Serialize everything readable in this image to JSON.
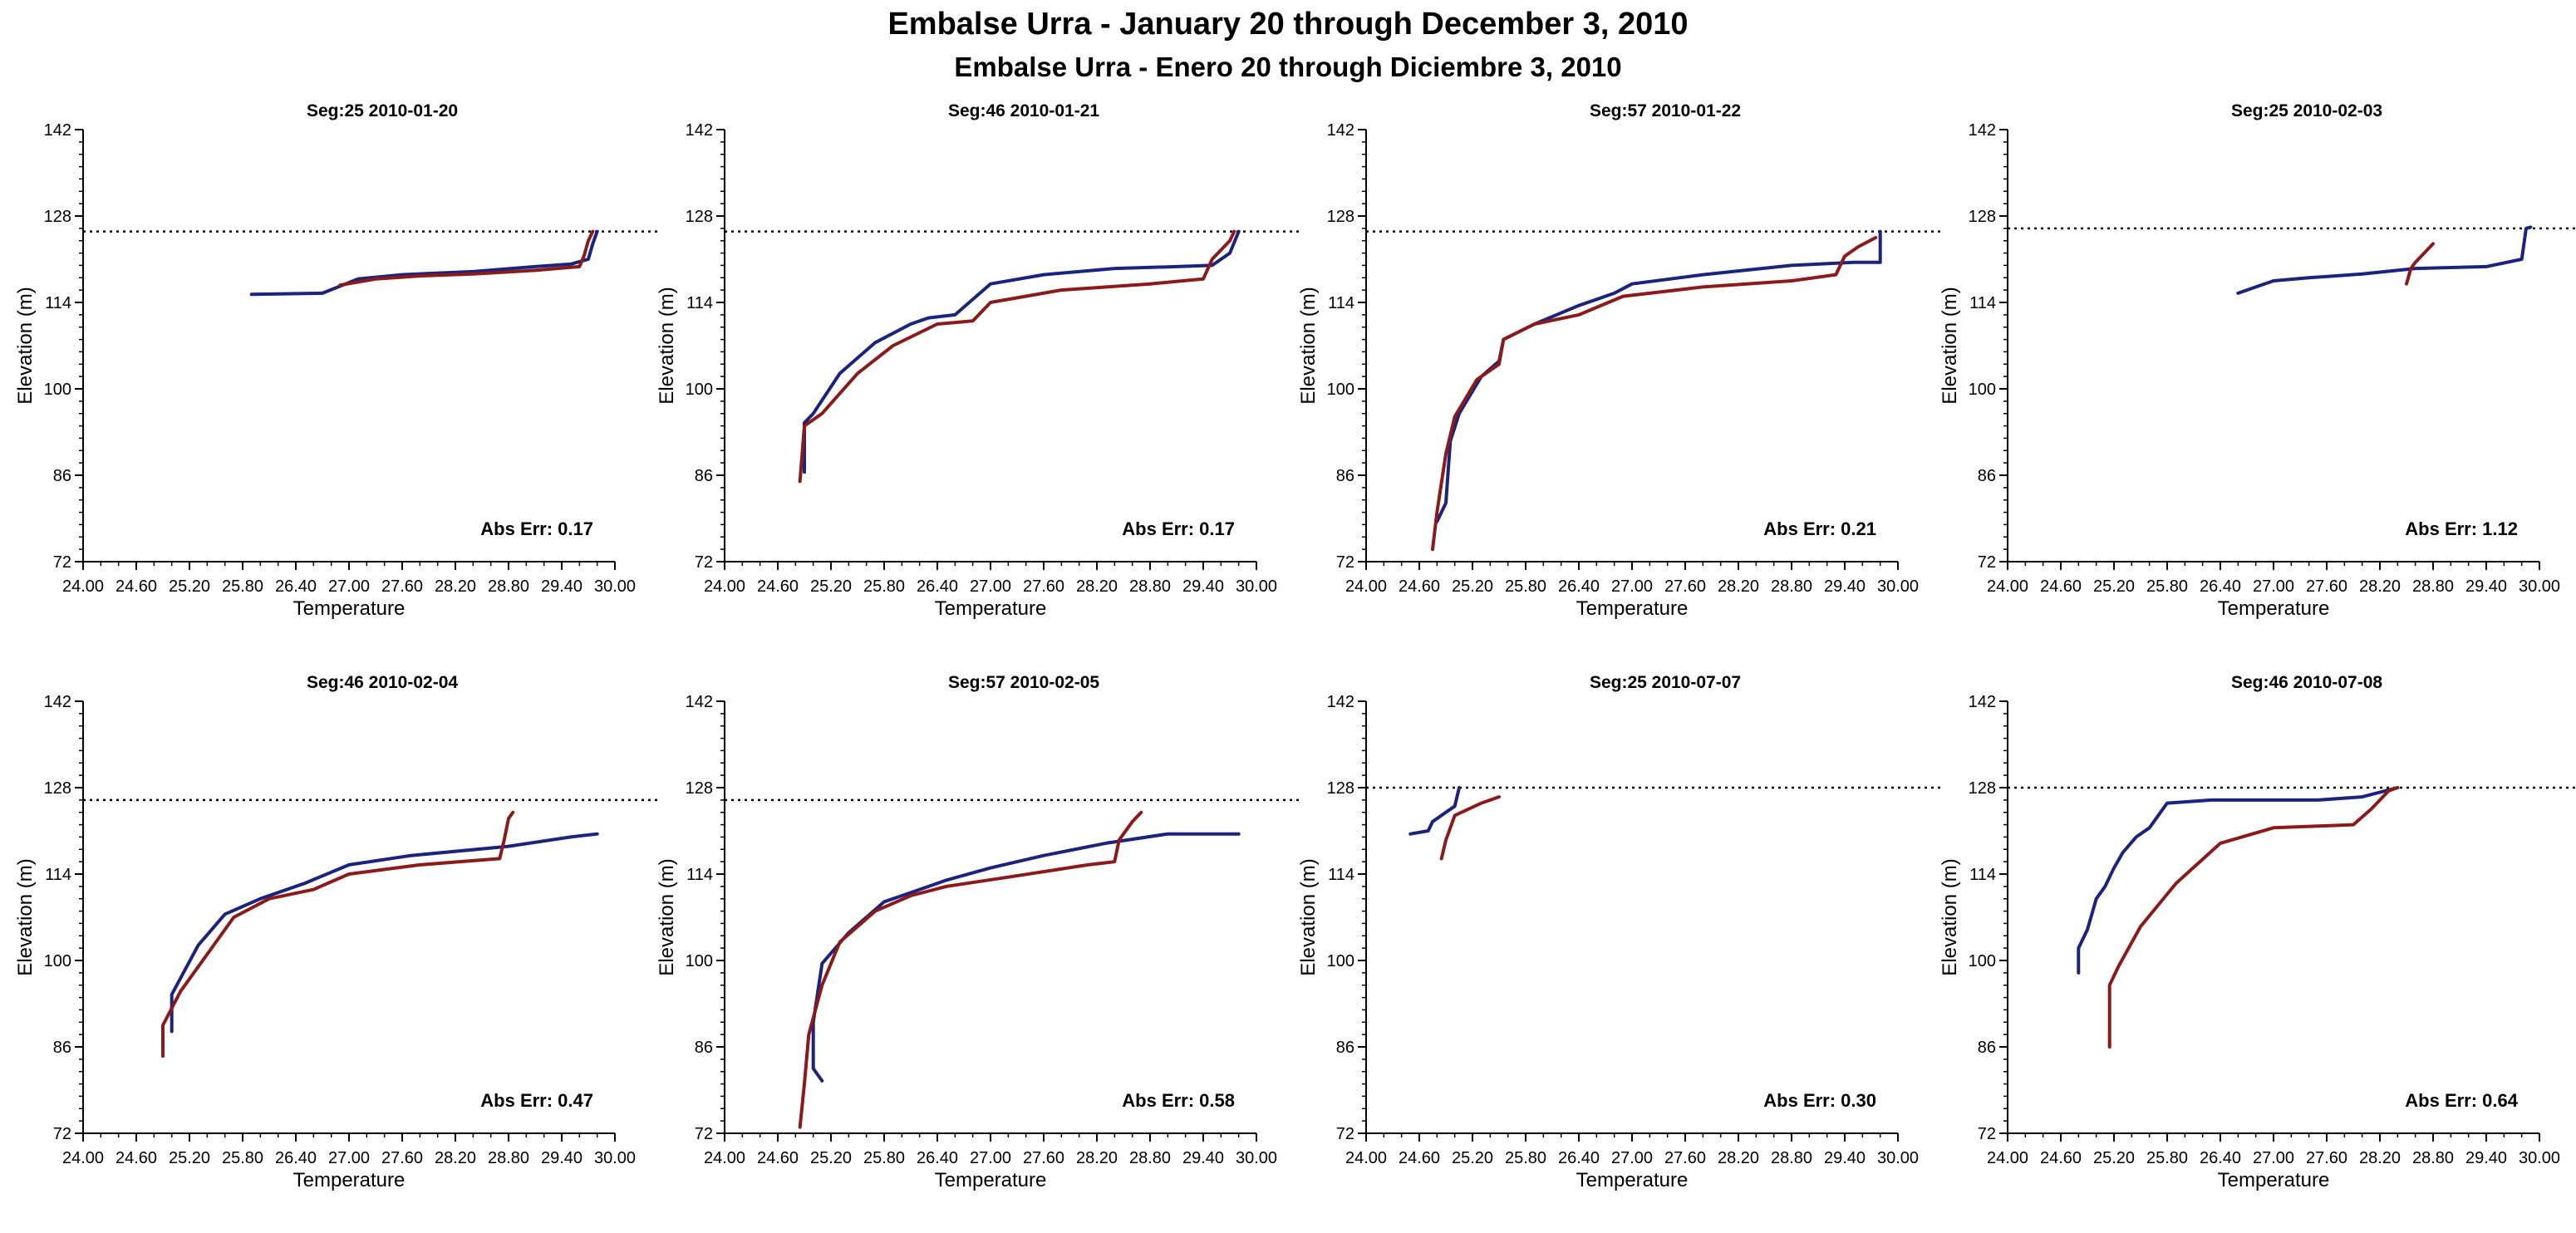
{
  "page": {
    "title": "Embalse Urra - January 20 through December 3, 2010",
    "subtitle": "Embalse Urra - Enero 20 through Diciembre 3, 2010"
  },
  "colors": {
    "observed": "#1a237e",
    "modeled": "#8b1a1a",
    "axis": "#000000",
    "reference": "#000000"
  },
  "chart_data": [
    {
      "type": "line",
      "title": "Seg:25  2010-01-20",
      "xlabel": "Temperature",
      "ylabel": "Elevation (m)",
      "xlim": [
        24.0,
        30.0
      ],
      "ylim": [
        72,
        142
      ],
      "xticks": [
        "24.00",
        "24.60",
        "25.20",
        "25.80",
        "26.40",
        "27.00",
        "27.60",
        "28.20",
        "28.80",
        "29.40",
        "30.00"
      ],
      "yticks": [
        "72",
        "86",
        "100",
        "114",
        "128",
        "142"
      ],
      "reference_elevation": 125.5,
      "annotation": "Abs Err: 0.17",
      "series": [
        {
          "name": "observed",
          "points": [
            [
              25.9,
              115.3
            ],
            [
              26.7,
              115.5
            ],
            [
              27.1,
              117.8
            ],
            [
              27.6,
              118.5
            ],
            [
              28.4,
              119.0
            ],
            [
              29.1,
              119.8
            ],
            [
              29.5,
              120.2
            ],
            [
              29.7,
              121.0
            ],
            [
              29.75,
              123.5
            ],
            [
              29.8,
              125.5
            ]
          ]
        },
        {
          "name": "modeled",
          "points": [
            [
              26.9,
              116.8
            ],
            [
              27.3,
              117.8
            ],
            [
              27.8,
              118.3
            ],
            [
              28.4,
              118.6
            ],
            [
              29.1,
              119.2
            ],
            [
              29.6,
              119.8
            ],
            [
              29.65,
              121.5
            ],
            [
              29.7,
              124.0
            ],
            [
              29.75,
              125.5
            ]
          ]
        }
      ]
    },
    {
      "type": "line",
      "title": "Seg:46  2010-01-21",
      "xlabel": "Temperature",
      "ylabel": "Elevation (m)",
      "xlim": [
        24.0,
        30.0
      ],
      "ylim": [
        72,
        142
      ],
      "xticks": [
        "24.00",
        "24.60",
        "25.20",
        "25.80",
        "26.40",
        "27.00",
        "27.60",
        "28.20",
        "28.80",
        "29.40",
        "30.00"
      ],
      "yticks": [
        "72",
        "86",
        "100",
        "114",
        "128",
        "142"
      ],
      "reference_elevation": 125.5,
      "annotation": "Abs Err: 0.17",
      "series": [
        {
          "name": "observed",
          "points": [
            [
              24.9,
              86.5
            ],
            [
              24.9,
              94.5
            ],
            [
              25.0,
              96.0
            ],
            [
              25.3,
              102.5
            ],
            [
              25.7,
              107.5
            ],
            [
              26.1,
              110.5
            ],
            [
              26.3,
              111.5
            ],
            [
              26.6,
              112.0
            ],
            [
              26.8,
              114.5
            ],
            [
              27.0,
              117.0
            ],
            [
              27.6,
              118.5
            ],
            [
              28.4,
              119.5
            ],
            [
              29.1,
              119.8
            ],
            [
              29.5,
              120.0
            ],
            [
              29.7,
              122.0
            ],
            [
              29.8,
              125.5
            ]
          ]
        },
        {
          "name": "modeled",
          "points": [
            [
              24.85,
              85.0
            ],
            [
              24.9,
              94.0
            ],
            [
              25.1,
              96.0
            ],
            [
              25.5,
              102.5
            ],
            [
              25.9,
              107.0
            ],
            [
              26.4,
              110.5
            ],
            [
              26.8,
              111.0
            ],
            [
              27.0,
              114.0
            ],
            [
              27.8,
              116.0
            ],
            [
              28.8,
              117.0
            ],
            [
              29.4,
              117.8
            ],
            [
              29.5,
              121.0
            ],
            [
              29.7,
              124.0
            ],
            [
              29.75,
              125.5
            ]
          ]
        }
      ]
    },
    {
      "type": "line",
      "title": "Seg:57  2010-01-22",
      "xlabel": "Temperature",
      "ylabel": "Elevation (m)",
      "xlim": [
        24.0,
        30.0
      ],
      "ylim": [
        72,
        142
      ],
      "xticks": [
        "24.00",
        "24.60",
        "25.20",
        "25.80",
        "26.40",
        "27.00",
        "27.60",
        "28.20",
        "28.80",
        "29.40",
        "30.00"
      ],
      "yticks": [
        "72",
        "86",
        "100",
        "114",
        "128",
        "142"
      ],
      "reference_elevation": 125.5,
      "annotation": "Abs Err: 0.21",
      "series": [
        {
          "name": "observed",
          "points": [
            [
              24.8,
              78.5
            ],
            [
              24.9,
              81.5
            ],
            [
              24.95,
              91.5
            ],
            [
              25.05,
              96.0
            ],
            [
              25.3,
              102.0
            ],
            [
              25.5,
              104.5
            ],
            [
              25.55,
              108.0
            ],
            [
              25.9,
              110.5
            ],
            [
              26.4,
              113.5
            ],
            [
              26.8,
              115.5
            ],
            [
              27.0,
              117.0
            ],
            [
              27.8,
              118.5
            ],
            [
              28.8,
              120.0
            ],
            [
              29.5,
              120.5
            ],
            [
              29.8,
              120.5
            ],
            [
              29.8,
              125.5
            ]
          ]
        },
        {
          "name": "modeled",
          "points": [
            [
              24.75,
              74.0
            ],
            [
              24.8,
              80.0
            ],
            [
              24.9,
              89.5
            ],
            [
              25.0,
              95.5
            ],
            [
              25.25,
              101.5
            ],
            [
              25.5,
              104.0
            ],
            [
              25.55,
              108.0
            ],
            [
              25.9,
              110.5
            ],
            [
              26.4,
              112.0
            ],
            [
              26.9,
              115.0
            ],
            [
              27.8,
              116.5
            ],
            [
              28.8,
              117.5
            ],
            [
              29.3,
              118.5
            ],
            [
              29.4,
              121.5
            ],
            [
              29.55,
              123.0
            ],
            [
              29.75,
              124.5
            ]
          ]
        }
      ]
    },
    {
      "type": "line",
      "title": "Seg:25  2010-02-03",
      "xlabel": "Temperature",
      "ylabel": "Elevation (m)",
      "xlim": [
        24.0,
        30.0
      ],
      "ylim": [
        72,
        142
      ],
      "xticks": [
        "24.00",
        "24.60",
        "25.20",
        "25.80",
        "26.40",
        "27.00",
        "27.60",
        "28.20",
        "28.80",
        "29.40",
        "30.00"
      ],
      "yticks": [
        "72",
        "86",
        "100",
        "114",
        "128",
        "142"
      ],
      "reference_elevation": 126.0,
      "annotation": "Abs Err: 1.12",
      "series": [
        {
          "name": "observed",
          "points": [
            [
              26.6,
              115.5
            ],
            [
              26.8,
              116.5
            ],
            [
              27.0,
              117.5
            ],
            [
              27.4,
              118.0
            ],
            [
              28.0,
              118.6
            ],
            [
              28.6,
              119.5
            ],
            [
              29.4,
              119.8
            ],
            [
              29.8,
              121.0
            ],
            [
              29.85,
              126.0
            ],
            [
              29.9,
              126.2
            ]
          ]
        },
        {
          "name": "modeled",
          "points": [
            [
              28.5,
              117.0
            ],
            [
              28.55,
              119.5
            ],
            [
              28.6,
              120.5
            ],
            [
              28.7,
              122.0
            ],
            [
              28.8,
              123.5
            ]
          ]
        }
      ]
    },
    {
      "type": "line",
      "title": "Seg:46  2010-02-04",
      "xlabel": "Temperature",
      "ylabel": "Elevation (m)",
      "xlim": [
        24.0,
        30.0
      ],
      "ylim": [
        72,
        142
      ],
      "xticks": [
        "24.00",
        "24.60",
        "25.20",
        "25.80",
        "26.40",
        "27.00",
        "27.60",
        "28.20",
        "28.80",
        "29.40",
        "30.00"
      ],
      "yticks": [
        "72",
        "86",
        "100",
        "114",
        "128",
        "142"
      ],
      "reference_elevation": 126.0,
      "annotation": "Abs Err: 0.47",
      "series": [
        {
          "name": "observed",
          "points": [
            [
              25.0,
              88.5
            ],
            [
              25.0,
              94.5
            ],
            [
              25.3,
              102.5
            ],
            [
              25.6,
              107.5
            ],
            [
              26.0,
              110.0
            ],
            [
              26.5,
              112.5
            ],
            [
              27.0,
              115.5
            ],
            [
              27.7,
              117.0
            ],
            [
              28.8,
              118.5
            ],
            [
              29.5,
              120.0
            ],
            [
              29.8,
              120.5
            ]
          ]
        },
        {
          "name": "modeled",
          "points": [
            [
              24.9,
              84.5
            ],
            [
              24.9,
              89.5
            ],
            [
              25.1,
              95.0
            ],
            [
              25.4,
              101.0
            ],
            [
              25.7,
              107.0
            ],
            [
              26.1,
              110.0
            ],
            [
              26.6,
              111.5
            ],
            [
              27.0,
              114.0
            ],
            [
              27.8,
              115.5
            ],
            [
              28.7,
              116.5
            ],
            [
              28.75,
              119.5
            ],
            [
              28.8,
              123.0
            ],
            [
              28.85,
              124.0
            ]
          ]
        }
      ]
    },
    {
      "type": "line",
      "title": "Seg:57  2010-02-05",
      "xlabel": "Temperature",
      "ylabel": "Elevation (m)",
      "xlim": [
        24.0,
        30.0
      ],
      "ylim": [
        72,
        142
      ],
      "xticks": [
        "24.00",
        "24.60",
        "25.20",
        "25.80",
        "26.40",
        "27.00",
        "27.60",
        "28.20",
        "28.80",
        "29.40",
        "30.00"
      ],
      "yticks": [
        "72",
        "86",
        "100",
        "114",
        "128",
        "142"
      ],
      "reference_elevation": 126.0,
      "annotation": "Abs Err: 0.58",
      "series": [
        {
          "name": "observed",
          "points": [
            [
              25.1,
              80.5
            ],
            [
              25.0,
              82.5
            ],
            [
              25.0,
              90.0
            ],
            [
              25.1,
              99.5
            ],
            [
              25.4,
              104.5
            ],
            [
              25.8,
              109.5
            ],
            [
              26.2,
              111.5
            ],
            [
              26.5,
              113.0
            ],
            [
              27.0,
              115.0
            ],
            [
              27.6,
              117.0
            ],
            [
              28.3,
              119.0
            ],
            [
              29.0,
              120.5
            ],
            [
              29.8,
              120.5
            ]
          ]
        },
        {
          "name": "modeled",
          "points": [
            [
              24.85,
              73.0
            ],
            [
              24.9,
              80.0
            ],
            [
              24.95,
              88.0
            ],
            [
              25.1,
              96.0
            ],
            [
              25.3,
              103.0
            ],
            [
              25.7,
              108.0
            ],
            [
              26.1,
              110.5
            ],
            [
              26.5,
              112.0
            ],
            [
              27.2,
              113.5
            ],
            [
              28.1,
              115.5
            ],
            [
              28.4,
              116.0
            ],
            [
              28.45,
              119.5
            ],
            [
              28.6,
              122.5
            ],
            [
              28.7,
              124.0
            ]
          ]
        }
      ]
    },
    {
      "type": "line",
      "title": "Seg:25  2010-07-07",
      "xlabel": "Temperature",
      "ylabel": "Elevation (m)",
      "xlim": [
        24.0,
        30.0
      ],
      "ylim": [
        72,
        142
      ],
      "xticks": [
        "24.00",
        "24.60",
        "25.20",
        "25.80",
        "26.40",
        "27.00",
        "27.60",
        "28.20",
        "28.80",
        "29.40",
        "30.00"
      ],
      "yticks": [
        "72",
        "86",
        "100",
        "114",
        "128",
        "142"
      ],
      "reference_elevation": 128.0,
      "annotation": "Abs Err: 0.30",
      "series": [
        {
          "name": "observed",
          "points": [
            [
              24.5,
              120.5
            ],
            [
              24.7,
              121.0
            ],
            [
              24.75,
              122.5
            ],
            [
              24.9,
              124.0
            ],
            [
              25.0,
              125.0
            ],
            [
              25.05,
              128.0
            ]
          ]
        },
        {
          "name": "modeled",
          "points": [
            [
              24.85,
              116.5
            ],
            [
              24.9,
              119.5
            ],
            [
              25.0,
              123.5
            ],
            [
              25.3,
              125.5
            ],
            [
              25.5,
              126.5
            ]
          ]
        }
      ]
    },
    {
      "type": "line",
      "title": "Seg:46  2010-07-08",
      "xlabel": "Temperature",
      "ylabel": "Elevation (m)",
      "xlim": [
        24.0,
        30.0
      ],
      "ylim": [
        72,
        142
      ],
      "xticks": [
        "24.00",
        "24.60",
        "25.20",
        "25.80",
        "26.40",
        "27.00",
        "27.60",
        "28.20",
        "28.80",
        "29.40",
        "30.00"
      ],
      "yticks": [
        "72",
        "86",
        "100",
        "114",
        "128",
        "142"
      ],
      "reference_elevation": 128.0,
      "annotation": "Abs Err: 0.64",
      "series": [
        {
          "name": "observed",
          "points": [
            [
              24.8,
              98.0
            ],
            [
              24.8,
              102.0
            ],
            [
              24.9,
              105.0
            ],
            [
              25.0,
              110.0
            ],
            [
              25.1,
              112.0
            ],
            [
              25.2,
              115.0
            ],
            [
              25.3,
              117.5
            ],
            [
              25.45,
              120.0
            ],
            [
              25.6,
              121.5
            ],
            [
              25.8,
              125.5
            ],
            [
              26.3,
              126.0
            ],
            [
              27.5,
              126.0
            ],
            [
              28.0,
              126.5
            ],
            [
              28.4,
              128.0
            ]
          ]
        },
        {
          "name": "modeled",
          "points": [
            [
              25.15,
              86.0
            ],
            [
              25.15,
              96.0
            ],
            [
              25.25,
              99.0
            ],
            [
              25.5,
              105.5
            ],
            [
              25.9,
              112.5
            ],
            [
              26.4,
              119.0
            ],
            [
              27.0,
              121.5
            ],
            [
              27.9,
              122.0
            ],
            [
              28.1,
              124.5
            ],
            [
              28.3,
              127.5
            ],
            [
              28.4,
              128.0
            ]
          ]
        }
      ]
    }
  ]
}
